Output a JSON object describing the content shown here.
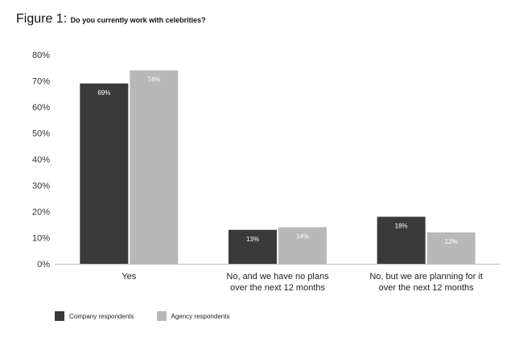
{
  "figure": {
    "label": "Figure 1:",
    "question": "Do you currently work with celebrities?"
  },
  "colors": {
    "company": "#3a3a3a",
    "agency": "#b9b8b8",
    "axis": "#bdbdbd"
  },
  "chart_data": {
    "type": "bar",
    "title": "Do you currently work with celebrities?",
    "categories": [
      [
        "Yes"
      ],
      [
        "No, and we have no plans",
        "over the next 12 months"
      ],
      [
        "No, but we are planning for it",
        "over the next 12 months"
      ]
    ],
    "series": [
      {
        "name": "Company respondents",
        "values": [
          69,
          13,
          18
        ]
      },
      {
        "name": "Agency respondents",
        "values": [
          74,
          14,
          12
        ]
      }
    ],
    "ylim": [
      0,
      80
    ],
    "yticks": [
      0,
      10,
      20,
      30,
      40,
      50,
      60,
      70,
      80
    ],
    "ytick_suffix": "%",
    "data_label_suffix": "%",
    "grid": false,
    "legend_position": "bottom-left"
  }
}
